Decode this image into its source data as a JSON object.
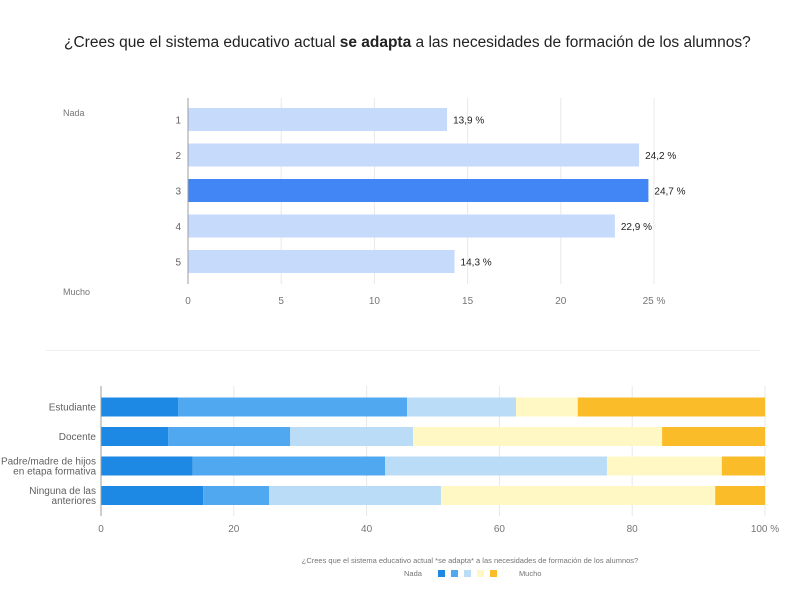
{
  "title": {
    "prefix": "¿Crees que el sistema educativo actual ",
    "bold": "se adapta",
    "suffix": " a las necesidades de formación de los alumnos?"
  },
  "chart_data": [
    {
      "type": "bar",
      "orientation": "horizontal",
      "title": "¿Crees que el sistema educativo actual se adapta a las necesidades de formación de los alumnos?",
      "categories": [
        "1",
        "2",
        "3",
        "4",
        "5"
      ],
      "values": [
        13.9,
        24.2,
        24.7,
        22.9,
        14.3
      ],
      "value_labels": [
        "13,9 %",
        "24,2 %",
        "24,7 %",
        "22,9 %",
        "14,3 %"
      ],
      "highlight_index": 2,
      "colors": {
        "default": "#c6dafc",
        "highlight": "#4285f4"
      },
      "side_labels": {
        "top": "Nada",
        "bottom": "Mucho"
      },
      "xlim": [
        0,
        25
      ],
      "xticks": [
        0,
        5,
        10,
        15,
        20,
        25
      ],
      "xtick_labels": [
        "0",
        "5",
        "10",
        "15",
        "20",
        "25 %"
      ],
      "grid": true
    },
    {
      "type": "bar",
      "orientation": "horizontal",
      "stacked": "percent",
      "categories": [
        "Estudiante",
        "Docente",
        "Padre/madre de hijos|en etapa formativa",
        "Ninguna de las|anteriores"
      ],
      "series": [
        {
          "name": "1",
          "color": "#1e88e5",
          "values": [
            11.6,
            10.1,
            13.8,
            15.4
          ]
        },
        {
          "name": "2",
          "color": "#4fa8f0",
          "values": [
            34.5,
            18.4,
            29.0,
            9.9
          ]
        },
        {
          "name": "3",
          "color": "#bbdcf7",
          "values": [
            16.4,
            18.5,
            33.4,
            25.9
          ]
        },
        {
          "name": "4",
          "color": "#fff8c4",
          "values": [
            9.3,
            37.5,
            17.3,
            41.3
          ]
        },
        {
          "name": "5",
          "color": "#fbbc2a",
          "values": [
            28.2,
            15.5,
            6.5,
            7.5
          ]
        }
      ],
      "xlim": [
        0,
        100
      ],
      "xticks": [
        0,
        20,
        40,
        60,
        80,
        100
      ],
      "xtick_labels": [
        "0",
        "20",
        "40",
        "60",
        "80",
        "100 %"
      ],
      "grid": true,
      "caption": "¿Crees que el sistema educativo actual *se adapta* a las necesidades de formación de los alumnos?",
      "legend": {
        "left_label": "Nada",
        "right_label": "Mucho",
        "placement": "bottom-center"
      }
    }
  ]
}
